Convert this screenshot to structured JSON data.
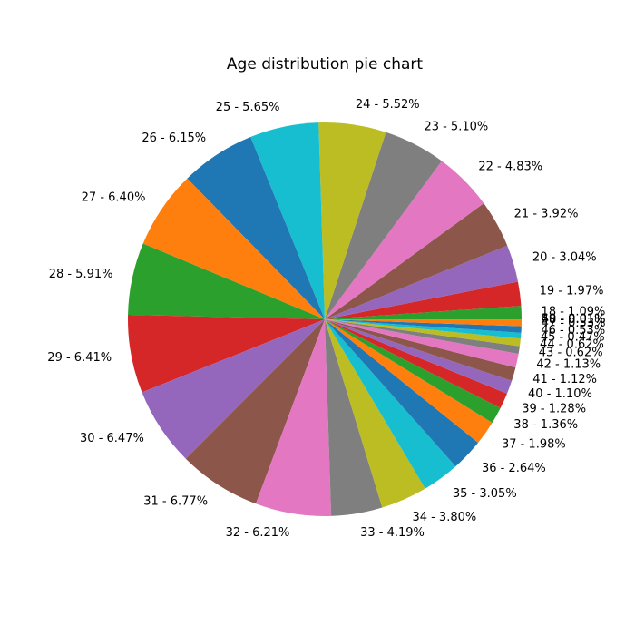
{
  "chart_data": {
    "type": "pie",
    "title": "Age distribution pie chart",
    "start_angle_deg": 0,
    "direction": "counterclockwise",
    "slices": [
      {
        "age": "18",
        "label": "18 - 1.09%",
        "value": 1.09,
        "color": "#2ca02c"
      },
      {
        "age": "19",
        "label": "19 - 1.97%",
        "value": 1.97,
        "color": "#d62728"
      },
      {
        "age": "20",
        "label": "20 - 3.04%",
        "value": 3.04,
        "color": "#9467bd"
      },
      {
        "age": "21",
        "label": "21 - 3.92%",
        "value": 3.92,
        "color": "#8c564b"
      },
      {
        "age": "22",
        "label": "22 - 4.83%",
        "value": 4.83,
        "color": "#e377c2"
      },
      {
        "age": "23",
        "label": "23 - 5.10%",
        "value": 5.1,
        "color": "#7f7f7f"
      },
      {
        "age": "24",
        "label": "24 - 5.52%",
        "value": 5.52,
        "color": "#bcbd22"
      },
      {
        "age": "25",
        "label": "25 - 5.65%",
        "value": 5.65,
        "color": "#17becf"
      },
      {
        "age": "26",
        "label": "26 - 6.15%",
        "value": 6.15,
        "color": "#1f77b4"
      },
      {
        "age": "27",
        "label": "27 - 6.40%",
        "value": 6.4,
        "color": "#ff7f0e"
      },
      {
        "age": "28",
        "label": "28 - 5.91%",
        "value": 5.91,
        "color": "#2ca02c"
      },
      {
        "age": "29",
        "label": "29 - 6.41%",
        "value": 6.41,
        "color": "#d62728"
      },
      {
        "age": "30",
        "label": "30 - 6.47%",
        "value": 6.47,
        "color": "#9467bd"
      },
      {
        "age": "31",
        "label": "31 - 6.77%",
        "value": 6.77,
        "color": "#8c564b"
      },
      {
        "age": "32",
        "label": "32 - 6.21%",
        "value": 6.21,
        "color": "#e377c2"
      },
      {
        "age": "33",
        "label": "33 - 4.19%",
        "value": 4.19,
        "color": "#7f7f7f"
      },
      {
        "age": "34",
        "label": "34 - 3.80%",
        "value": 3.8,
        "color": "#bcbd22"
      },
      {
        "age": "35",
        "label": "35 - 3.05%",
        "value": 3.05,
        "color": "#17becf"
      },
      {
        "age": "36",
        "label": "36 - 2.64%",
        "value": 2.64,
        "color": "#1f77b4"
      },
      {
        "age": "37",
        "label": "37 - 1.98%",
        "value": 1.98,
        "color": "#ff7f0e"
      },
      {
        "age": "38",
        "label": "38 - 1.36%",
        "value": 1.36,
        "color": "#2ca02c"
      },
      {
        "age": "39",
        "label": "39 - 1.28%",
        "value": 1.28,
        "color": "#d62728"
      },
      {
        "age": "40",
        "label": "40 - 1.10%",
        "value": 1.1,
        "color": "#9467bd"
      },
      {
        "age": "41",
        "label": "41 - 1.12%",
        "value": 1.12,
        "color": "#8c564b"
      },
      {
        "age": "42",
        "label": "42 - 1.13%",
        "value": 1.13,
        "color": "#e377c2"
      },
      {
        "age": "43",
        "label": "43 - 0.62%",
        "value": 0.62,
        "color": "#7f7f7f"
      },
      {
        "age": "44",
        "label": "44 - 0.62%",
        "value": 0.62,
        "color": "#bcbd22"
      },
      {
        "age": "45",
        "label": "45 - 0.47%",
        "value": 0.47,
        "color": "#17becf"
      },
      {
        "age": "46",
        "label": "46 - 0.53%",
        "value": 0.53,
        "color": "#1f77b4"
      },
      {
        "age": "47",
        "label": "47 - 0.53%",
        "value": 0.53,
        "color": "#ff7f0e"
      },
      {
        "age": "48",
        "label": "48 - 0.01%",
        "value": 0.01,
        "color": "#2ca02c"
      },
      {
        "age": "49",
        "label": "49 - 0.01%",
        "value": 0.01,
        "color": "#d62728"
      },
      {
        "age": "50",
        "label": "50 - 0.01%",
        "value": 0.01,
        "color": "#9467bd"
      }
    ]
  }
}
